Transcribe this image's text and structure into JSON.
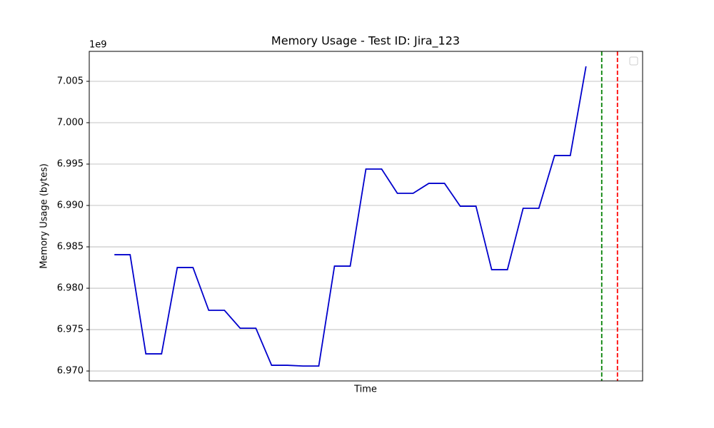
{
  "chart_data": {
    "type": "line",
    "title": "Memory Usage - Test ID: Jira_123",
    "xlabel": "Time",
    "ylabel": "Memory Usage (bytes)",
    "y_offset_label": "1e9",
    "x": [
      0,
      1,
      2,
      3,
      4,
      5,
      6,
      7,
      8,
      9,
      10,
      11,
      12,
      13,
      14,
      15,
      16,
      17,
      18,
      19,
      20,
      21,
      22,
      23,
      24,
      25,
      26,
      27,
      28,
      29,
      30
    ],
    "values": [
      6984050000,
      6984050000,
      6972070000,
      6972070000,
      6982500000,
      6982500000,
      6977330000,
      6977330000,
      6975170000,
      6975170000,
      6970690000,
      6970690000,
      6970600000,
      6970600000,
      6982670000,
      6982670000,
      6994400000,
      6994400000,
      6991470000,
      6991470000,
      6992670000,
      6992670000,
      6989910000,
      6989910000,
      6982240000,
      6982240000,
      6989660000,
      6989660000,
      6996030000,
      6996030000,
      7006810000
    ],
    "color": "#0000cc",
    "vlines": [
      {
        "x": 31,
        "color": "green"
      },
      {
        "x": 32,
        "color": "red"
      }
    ],
    "xlim": [
      -1.6,
      33.6
    ],
    "ylim": [
      6968800000,
      7008620000
    ],
    "yticks": [
      {
        "value": 6970000000,
        "label": "6.970"
      },
      {
        "value": 6975000000,
        "label": "6.975"
      },
      {
        "value": 6980000000,
        "label": "6.980"
      },
      {
        "value": 6985000000,
        "label": "6.985"
      },
      {
        "value": 6990000000,
        "label": "6.990"
      },
      {
        "value": 6995000000,
        "label": "6.995"
      },
      {
        "value": 7000000000,
        "label": "7.000"
      },
      {
        "value": 7005000000,
        "label": "7.005"
      }
    ],
    "grid": true,
    "legend": "upper right"
  }
}
